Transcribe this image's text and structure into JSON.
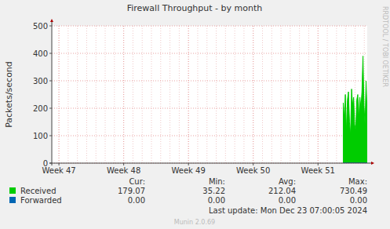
{
  "chart_data": {
    "type": "area",
    "title": "Firewall Throughput - by month",
    "y_label": "Packets/second",
    "x": [
      51.39,
      51.406,
      51.422,
      51.438,
      51.454,
      51.47,
      51.486,
      51.502,
      51.518,
      51.534,
      51.55,
      51.566,
      51.582,
      51.598,
      51.614,
      51.63,
      51.646,
      51.662,
      51.678,
      51.694,
      51.71,
      51.726,
      51.742,
      51.758
    ],
    "series": [
      {
        "name": "Received",
        "color": "#00cc00",
        "values": [
          220,
          160,
          250,
          110,
          230,
          260,
          150,
          100,
          270,
          210,
          240,
          140,
          120,
          230,
          250,
          160,
          240,
          200,
          260,
          390,
          210,
          140,
          300,
          180
        ],
        "stats": [
          "179.07",
          "35.22",
          "212.04",
          "730.49"
        ]
      },
      {
        "name": "Forwarded",
        "color": "#0066b3",
        "values": [
          0,
          0,
          0,
          0,
          0,
          0,
          0,
          0,
          0,
          0,
          0,
          0,
          0,
          0,
          0,
          0,
          0,
          0,
          0,
          0,
          0,
          0,
          0,
          0
        ],
        "stats": [
          "0.00",
          "0.00",
          "0.00",
          "0.00"
        ]
      }
    ],
    "stats_headers": [
      "Cur:",
      "Min:",
      "Avg:",
      "Max:"
    ],
    "xlim": [
      46.89,
      51.76
    ],
    "xticks": [
      {
        "value": 47,
        "label": "Week 47"
      },
      {
        "value": 48,
        "label": "Week 48"
      },
      {
        "value": 49,
        "label": "Week 49"
      },
      {
        "value": 50,
        "label": "Week 50"
      },
      {
        "value": 51,
        "label": "Week 51"
      }
    ],
    "ylim": [
      0,
      500
    ],
    "yticks": [
      0,
      100,
      200,
      300,
      400,
      500
    ],
    "grid": true,
    "annotations": [
      "RRDTOOL / TOBI OETIKER",
      "Last update: Mon Dec 23 07:00:05 2024",
      "Munin 2.0.69"
    ]
  }
}
